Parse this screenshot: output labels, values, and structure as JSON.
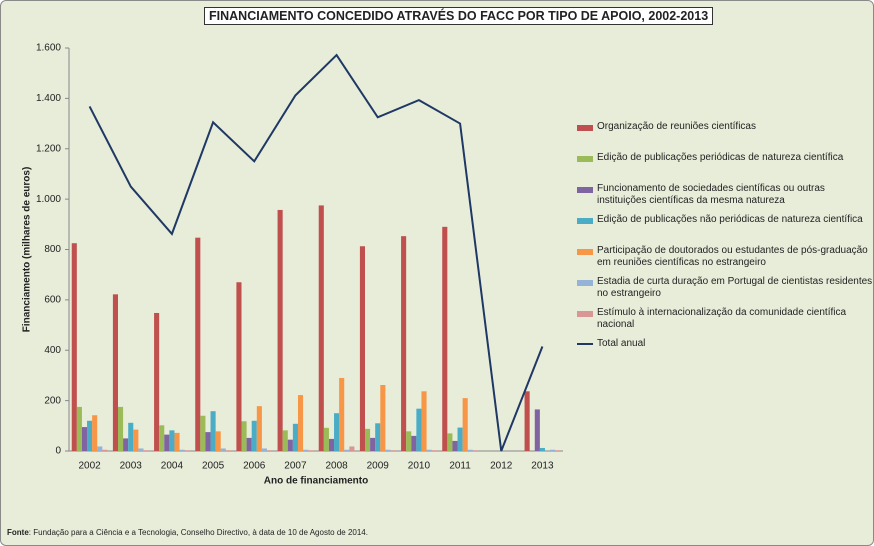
{
  "chart_data": {
    "type": "bar",
    "title": "FINANCIAMENTO CONCEDIDO ATRAVÉS DO FACC POR TIPO DE APOIO, 2002-2013",
    "x_label": "Ano de financiamento",
    "y_label": "Financiamento (milhares de euros)",
    "source": {
      "label": "Fonte",
      "text": ": Fundação para a Ciência e a Tecnologia, Conselho Directivo, à data de 10 de Agosto de 2014."
    },
    "categories": [
      "2002",
      "2003",
      "2004",
      "2005",
      "2006",
      "2007",
      "2008",
      "2009",
      "2010",
      "2011",
      "2012",
      "2013"
    ],
    "series": [
      {
        "name": "Organização de reuniões científicas",
        "color": "#c0504d",
        "values": [
          825,
          622,
          548,
          847,
          670,
          957,
          975,
          813,
          853,
          890,
          0,
          237
        ]
      },
      {
        "name": "Edição de publicações periódicas de natureza científica",
        "color": "#9bbb59",
        "values": [
          175,
          175,
          102,
          140,
          118,
          82,
          92,
          88,
          78,
          70,
          0,
          0
        ]
      },
      {
        "name": "Funcionamento de sociedades científicas ou outras instituições científicas da mesma natureza",
        "color": "#8064a2",
        "values": [
          95,
          50,
          65,
          75,
          52,
          45,
          48,
          52,
          60,
          40,
          0,
          165
        ]
      },
      {
        "name": "Edição de publicações não periódicas de natureza científica",
        "color": "#4bacc6",
        "values": [
          120,
          112,
          82,
          158,
          120,
          108,
          150,
          110,
          168,
          93,
          0,
          12
        ]
      },
      {
        "name": "Participação de doutorados ou estudantes de pós-graduação em reuniões científicas no estrangeiro",
        "color": "#f79646",
        "values": [
          142,
          85,
          72,
          78,
          178,
          222,
          290,
          262,
          237,
          210,
          0,
          0
        ]
      },
      {
        "name": "Estadia de curta duração em Portugal de cientistas residentes no estrangeiro",
        "color": "#95b3d7",
        "values": [
          18,
          10,
          5,
          10,
          10,
          5,
          5,
          5,
          5,
          5,
          0,
          5
        ]
      },
      {
        "name": "Estímulo à internacionalização da comunidade científica nacional",
        "color": "#d99694",
        "values": [
          5,
          3,
          3,
          3,
          3,
          3,
          18,
          3,
          3,
          3,
          0,
          3
        ]
      },
      {
        "name": "Total anual",
        "color": "#1f3864",
        "type": "line",
        "values": [
          1368,
          1050,
          862,
          1305,
          1150,
          1412,
          1572,
          1325,
          1393,
          1300,
          0,
          415
        ]
      }
    ],
    "ylim": [
      0,
      1600
    ],
    "yticks": [
      0,
      200,
      400,
      600,
      800,
      {
        "value": 1000,
        "label": "1.000"
      },
      {
        "value": 1200,
        "label": "1.200"
      },
      {
        "value": 1400,
        "label": "1.400"
      },
      {
        "value": 1600,
        "label": "1.600"
      }
    ],
    "grid": false
  }
}
